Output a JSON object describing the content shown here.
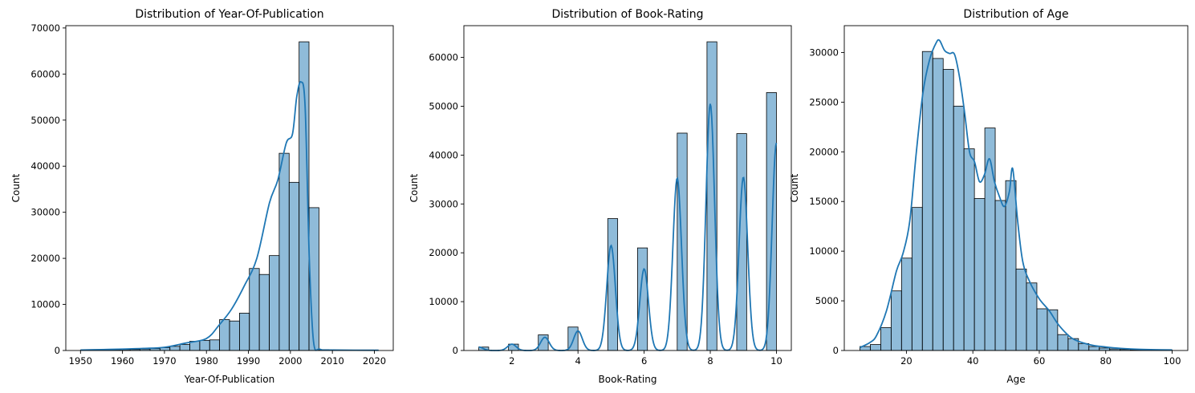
{
  "chart_data": [
    {
      "type": "histogram",
      "title": "Distribution of Year-Of-Publication",
      "xlabel": "Year-Of-Publication",
      "ylabel": "Count",
      "xlim": [
        1946.5,
        2024.5
      ],
      "ylim": [
        0,
        70500
      ],
      "xticks": [
        1950,
        1960,
        1970,
        1980,
        1990,
        2000,
        2010,
        2020
      ],
      "yticks": [
        0,
        10000,
        20000,
        30000,
        40000,
        50000,
        60000,
        70000
      ],
      "bin_edges": [
        1950,
        1952.37,
        1954.73,
        1957.1,
        1959.47,
        1961.83,
        1964.2,
        1966.57,
        1968.93,
        1971.3,
        1973.67,
        1976.03,
        1978.4,
        1980.77,
        1983.13,
        1985.5,
        1987.87,
        1990.23,
        1992.6,
        1994.97,
        1997.33,
        1999.7,
        2002.07,
        2004.43,
        2006.8,
        2009.17,
        2011.53,
        2013.9,
        2016.27,
        2018.63,
        2021
      ],
      "counts": [
        80,
        120,
        150,
        180,
        200,
        220,
        300,
        400,
        600,
        900,
        1300,
        2000,
        2200,
        2300,
        6700,
        6400,
        8100,
        17800,
        16500,
        20600,
        42800,
        36500,
        67000,
        31000,
        200,
        80,
        60,
        40,
        30,
        20
      ],
      "kde": {
        "x": [
          1950,
          1955,
          1960,
          1965,
          1970,
          1975,
          1980,
          1983,
          1986,
          1989,
          1992,
          1995,
          1997,
          1999,
          2000.5,
          2001.5,
          2002.5,
          2003.5,
          2004.5,
          2005.5,
          2007,
          2010,
          2021
        ],
        "y": [
          100,
          200,
          300,
          450,
          700,
          1600,
          2600,
          5500,
          9000,
          14000,
          20000,
          32000,
          37000,
          45000,
          47000,
          55000,
          58300,
          53000,
          20000,
          2000,
          300,
          100,
          50
        ]
      }
    },
    {
      "type": "histogram",
      "title": "Distribution of Book-Rating",
      "xlabel": "Book-Rating",
      "ylabel": "Count",
      "xlim": [
        0.55,
        10.45
      ],
      "ylim": [
        0,
        66500
      ],
      "xticks": [
        2,
        4,
        6,
        8,
        10
      ],
      "yticks": [
        0,
        10000,
        20000,
        30000,
        40000,
        50000,
        60000
      ],
      "bin_edges": [
        1,
        1.3,
        1.6,
        1.9,
        2.2,
        2.5,
        2.8,
        3.1,
        3.4,
        3.7,
        4,
        4.3,
        4.6,
        4.9,
        5.2,
        5.5,
        5.8,
        6.1,
        6.4,
        6.7,
        7,
        7.3,
        7.6,
        7.9,
        8.2,
        8.5,
        8.8,
        9.1,
        9.4,
        9.7,
        10
      ],
      "counts": [
        700,
        0,
        0,
        1300,
        0,
        0,
        3200,
        0,
        0,
        4800,
        0,
        0,
        0,
        27000,
        0,
        0,
        21000,
        0,
        0,
        0,
        44500,
        0,
        0,
        63200,
        0,
        0,
        44400,
        0,
        0,
        52800
      ],
      "kde": {
        "peaks": [
          [
            1,
            700
          ],
          [
            2,
            1300
          ],
          [
            3,
            2700
          ],
          [
            4,
            4000
          ],
          [
            5,
            21500
          ],
          [
            6,
            16700
          ],
          [
            7,
            35300
          ],
          [
            8,
            50500
          ],
          [
            9,
            35500
          ],
          [
            10,
            42500
          ]
        ],
        "bandwidth": 0.13
      }
    },
    {
      "type": "histogram",
      "title": "Distribution of Age",
      "xlabel": "Age",
      "ylabel": "Count",
      "xlim": [
        1.3,
        104.7
      ],
      "ylim": [
        0,
        32700
      ],
      "xticks": [
        20,
        40,
        60,
        80,
        100
      ],
      "yticks": [
        0,
        5000,
        10000,
        15000,
        20000,
        25000,
        30000
      ],
      "bin_edges": [
        6,
        9.13,
        12.27,
        15.4,
        18.53,
        21.67,
        24.8,
        27.93,
        31.07,
        34.2,
        37.33,
        40.47,
        43.6,
        46.73,
        49.87,
        53,
        56.13,
        59.27,
        62.4,
        65.53,
        68.67,
        71.8,
        74.93,
        78.07,
        81.2,
        84.33,
        87.47,
        90.6,
        93.73,
        96.87,
        100
      ],
      "counts": [
        400,
        600,
        2300,
        6000,
        9300,
        14400,
        30100,
        29400,
        28300,
        24600,
        20300,
        15300,
        22400,
        15100,
        17100,
        8200,
        6800,
        4200,
        4100,
        1600,
        1200,
        700,
        400,
        250,
        150,
        100,
        80,
        60,
        50,
        40
      ],
      "kde": {
        "x": [
          6,
          9,
          11,
          14,
          17,
          19,
          21,
          23,
          25,
          27,
          29,
          30,
          31.5,
          33,
          34.5,
          36,
          37.5,
          39,
          40.5,
          42,
          43.5,
          45,
          46.5,
          48,
          49.5,
          51,
          52,
          53.5,
          55,
          57,
          60,
          63,
          66,
          70,
          75,
          80,
          85,
          90,
          95,
          100
        ],
        "y": [
          300,
          800,
          1500,
          4000,
          8000,
          9800,
          13000,
          20000,
          26000,
          29300,
          31000,
          31200,
          30200,
          29900,
          29800,
          27500,
          24000,
          20000,
          19000,
          17000,
          17700,
          19300,
          17000,
          15500,
          14500,
          16000,
          18300,
          13000,
          9000,
          7000,
          5200,
          4000,
          2500,
          1200,
          600,
          350,
          200,
          120,
          80,
          60
        ]
      }
    }
  ]
}
